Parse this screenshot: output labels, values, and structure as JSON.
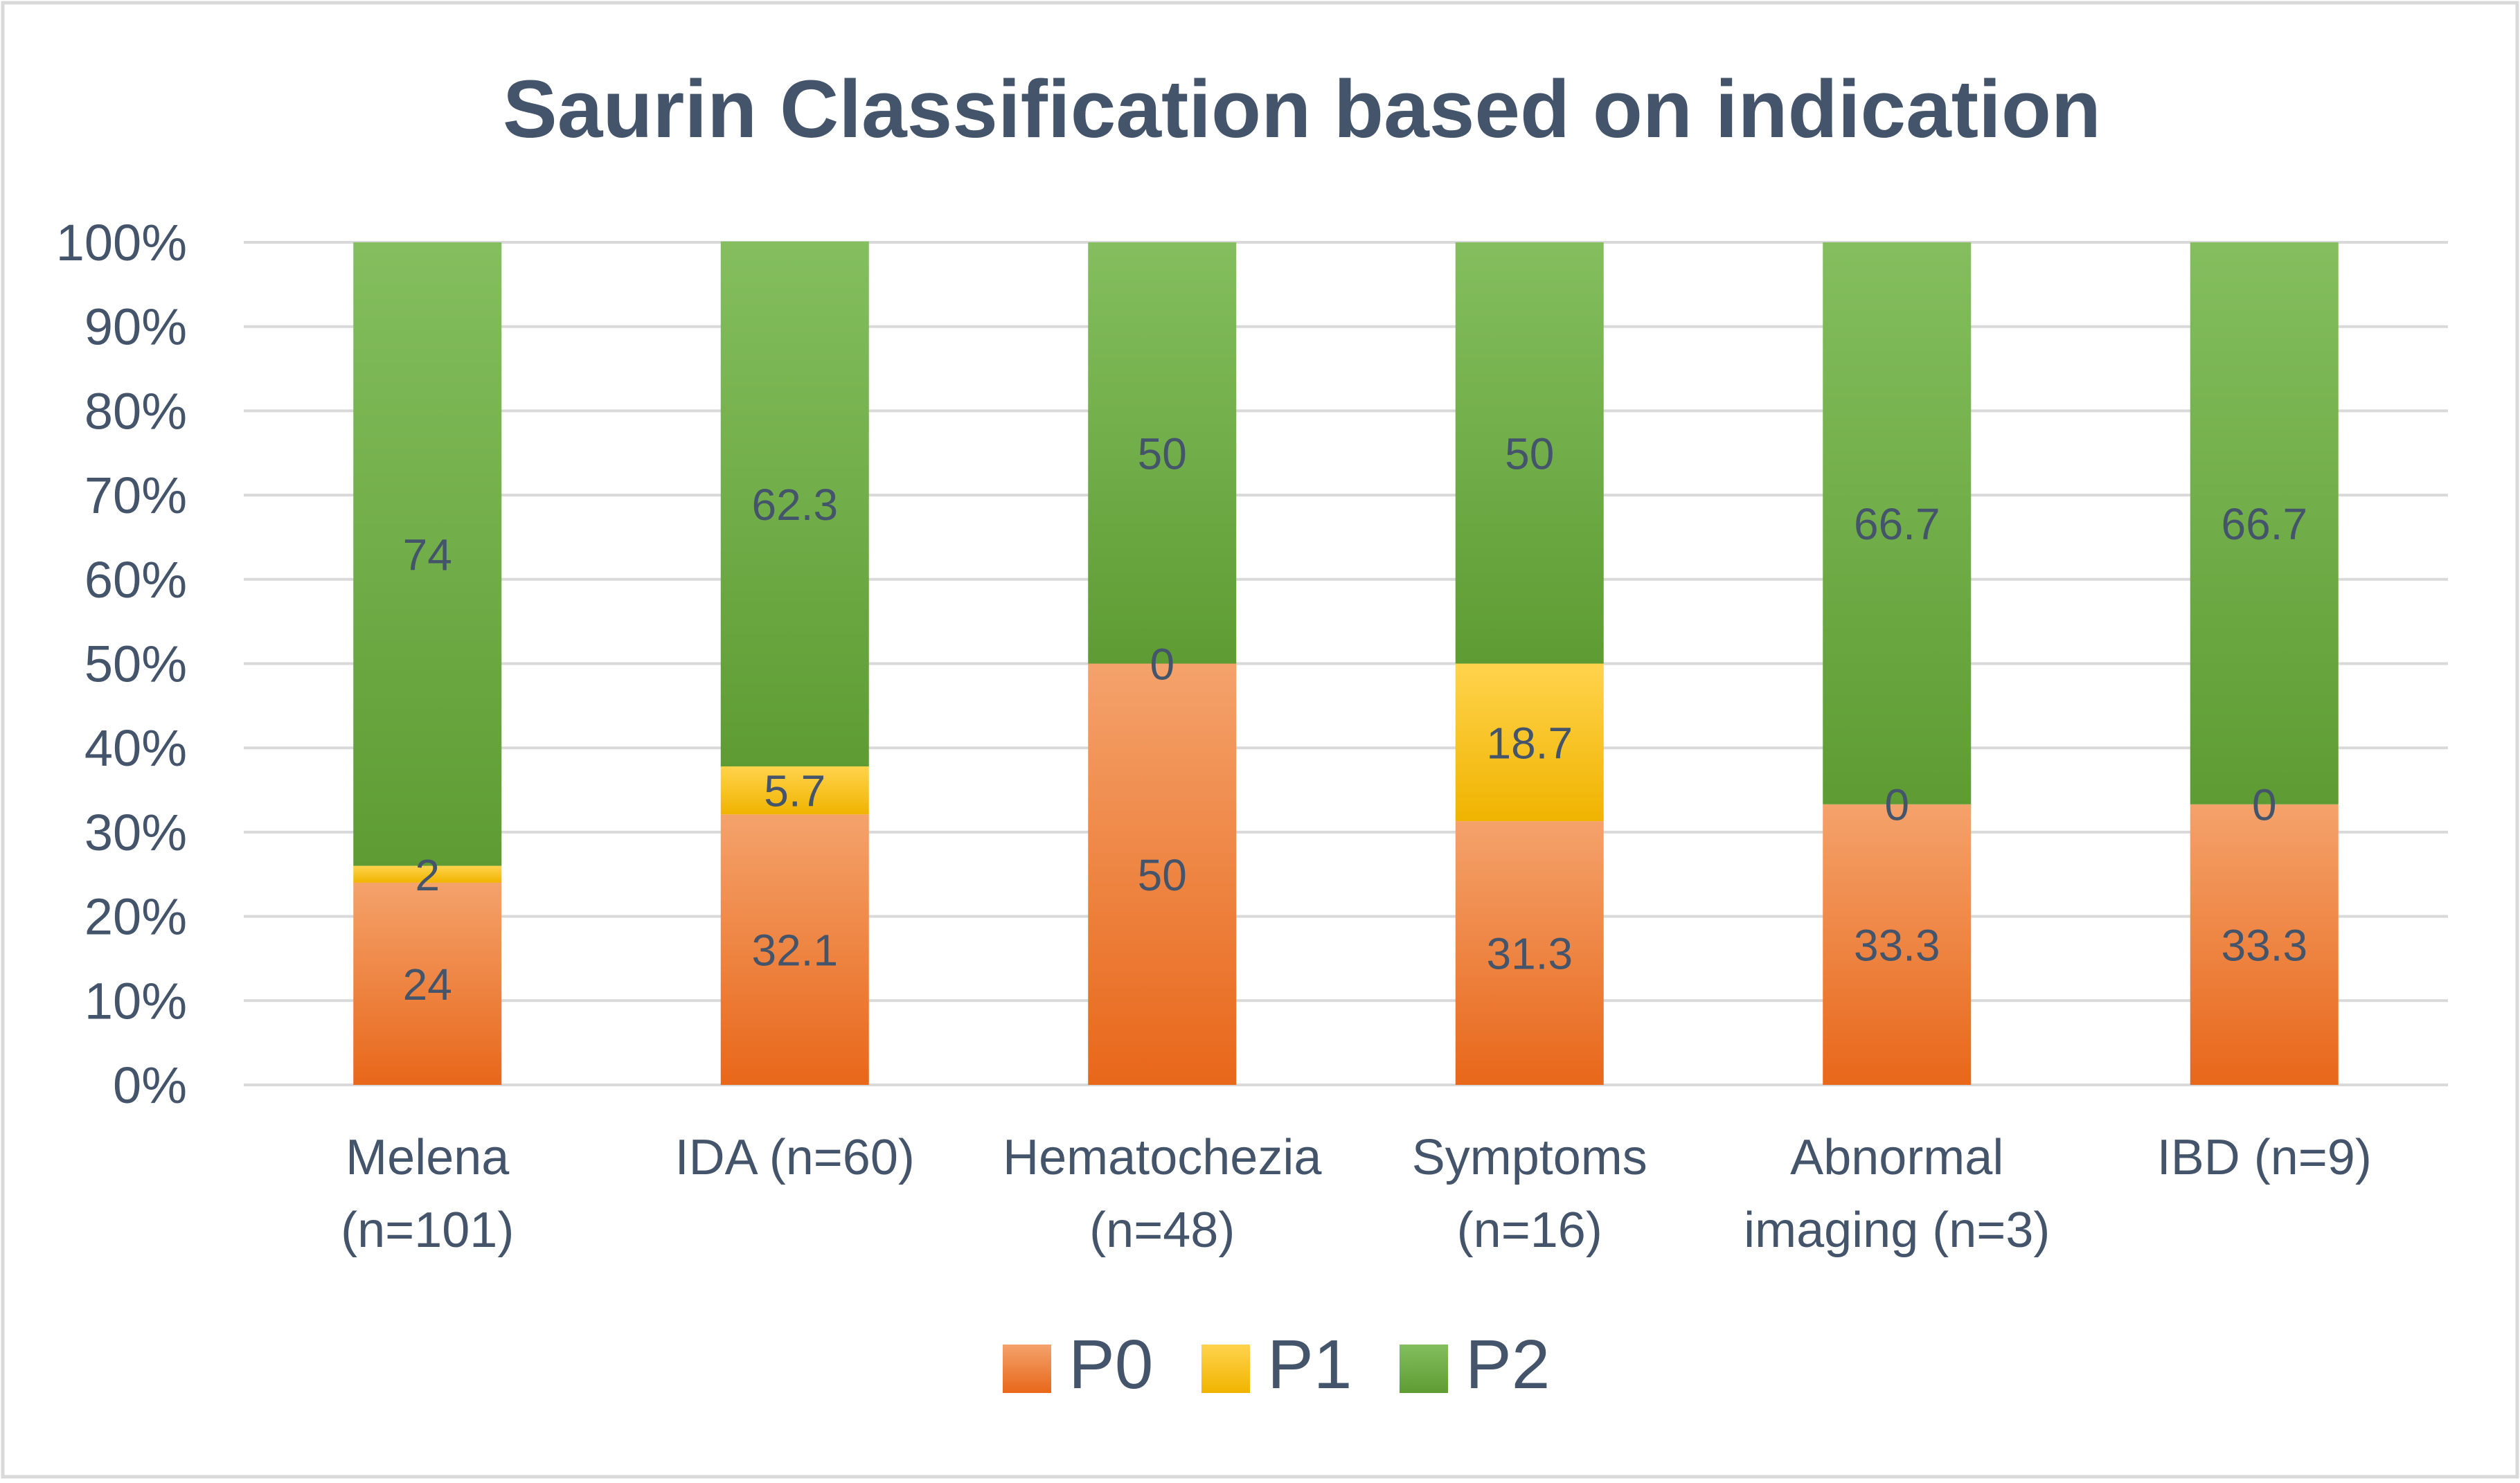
{
  "chart_data": {
    "type": "bar",
    "stacked": true,
    "percent_stacked": true,
    "title": "Saurin Classification based on indication",
    "xlabel": "",
    "ylabel": "",
    "ylim": [
      0,
      100
    ],
    "yticks": [
      "0%",
      "10%",
      "20%",
      "30%",
      "40%",
      "50%",
      "60%",
      "70%",
      "80%",
      "90%",
      "100%"
    ],
    "categories": [
      [
        "Melena",
        "(n=101)"
      ],
      [
        "IDA (n=60)"
      ],
      [
        "Hematochezia",
        "(n=48)"
      ],
      [
        "Symptoms",
        "(n=16)"
      ],
      [
        "Abnormal",
        "imaging (n=3)"
      ],
      [
        "IBD (n=9)"
      ]
    ],
    "series": [
      {
        "name": "P0",
        "color": "#ED7D31",
        "values": [
          24,
          32.1,
          50,
          31.3,
          33.3,
          33.3
        ]
      },
      {
        "name": "P1",
        "color": "#FFC000",
        "values": [
          2,
          5.7,
          0,
          18.7,
          0,
          0
        ]
      },
      {
        "name": "P2",
        "color": "#70AD47",
        "values": [
          74,
          62.3,
          50,
          50,
          66.7,
          66.7
        ]
      }
    ],
    "grid": true,
    "legend": "bottom"
  }
}
